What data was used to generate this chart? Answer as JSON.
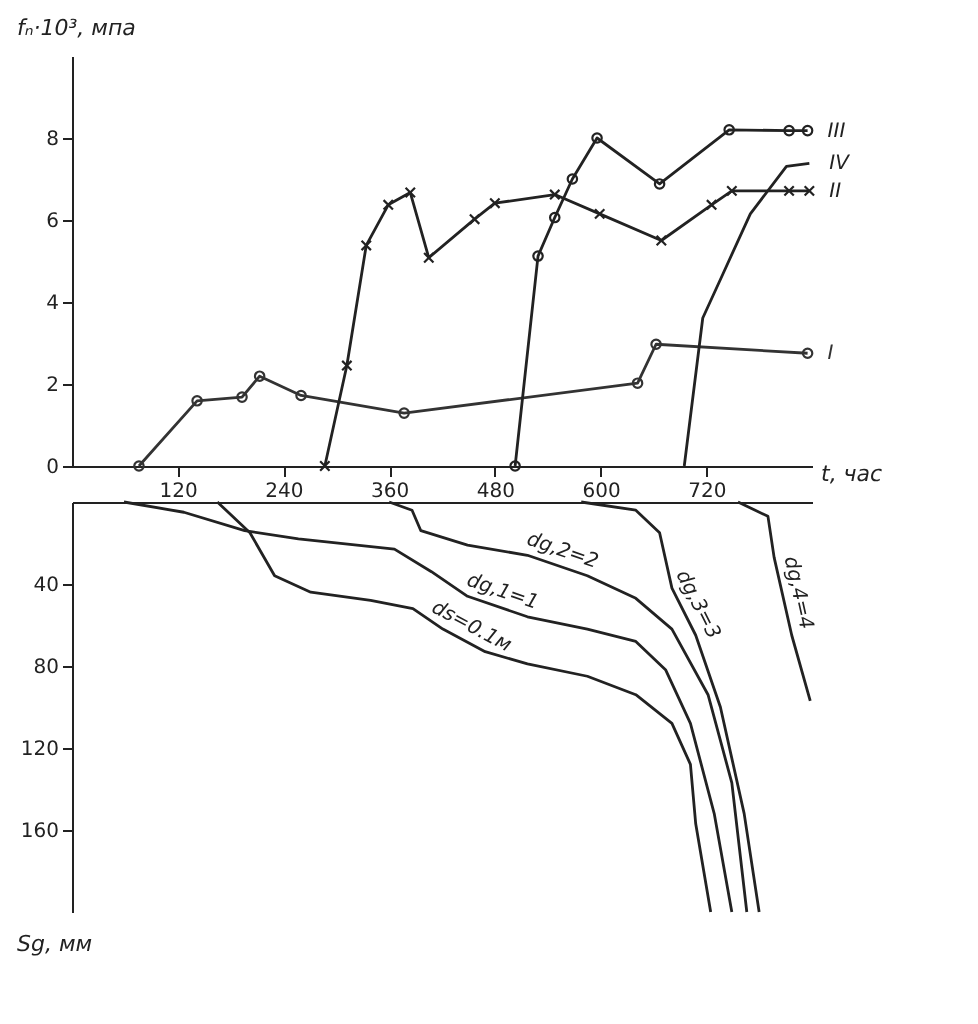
{
  "chart_data": [
    {
      "type": "line",
      "ylabel": "fₙ·10³, мпа",
      "xlabel": "t, час",
      "xlim": [
        0,
        840
      ],
      "xticks": [
        120,
        240,
        360,
        480,
        600,
        720
      ],
      "ylim": [
        0,
        10
      ],
      "yticks": [
        0,
        2,
        4,
        6,
        8
      ],
      "legend": false,
      "series": [
        {
          "name": "I",
          "color": "#333333",
          "marker": "circle",
          "x": [
            76,
            142,
            193,
            213,
            260,
            377,
            642,
            663,
            835
          ],
          "values": [
            0,
            1.59,
            1.68,
            2.19,
            1.72,
            1.29,
            2.02,
            2.97,
            2.75
          ]
        },
        {
          "name": "II",
          "color": "#222222",
          "marker": "cross",
          "x": [
            287,
            312,
            334,
            359,
            384,
            405,
            457,
            480,
            548,
            599,
            669,
            726,
            749,
            814,
            837
          ],
          "values": [
            0,
            2.45,
            5.38,
            6.37,
            6.67,
            5.08,
            6.02,
            6.41,
            6.62,
            6.15,
            5.5,
            6.37,
            6.71,
            6.71,
            6.71
          ]
        },
        {
          "name": "III",
          "color": "#222222",
          "marker": "circle",
          "x": [
            503,
            529,
            548,
            568,
            596,
            667,
            746,
            814,
            835
          ],
          "values": [
            0,
            5.12,
            6.06,
            7.0,
            8.0,
            6.88,
            8.2,
            8.18,
            8.18
          ]
        },
        {
          "name": "IV",
          "color": "#222222",
          "marker": "none",
          "x": [
            695,
            716,
            739,
            770,
            811,
            837
          ],
          "values": [
            0,
            3.61,
            4.69,
            6.15,
            7.31,
            7.38
          ]
        }
      ]
    },
    {
      "type": "line",
      "ylabel": "Sg, мм",
      "xlim": [
        0,
        840
      ],
      "ylim": [
        200,
        0
      ],
      "yticks": [
        40,
        80,
        120,
        160
      ],
      "tick_labels": "y",
      "legend": false,
      "series": [
        {
          "name": "ds=0.1м",
          "color": "#222222",
          "x": [
            165,
            202,
            230,
            271,
            339,
            387,
            421,
            469,
            517,
            585,
            640,
            681,
            702,
            708,
            725
          ],
          "values": [
            0,
            15,
            36,
            44,
            48,
            52,
            62,
            73,
            79,
            85,
            94,
            108,
            128,
            157,
            200
          ]
        },
        {
          "name": "dg,1=1",
          "color": "#222222",
          "x": [
            59,
            127,
            196,
            257,
            366,
            408,
            449,
            517,
            585,
            640,
            674,
            702,
            729,
            749
          ],
          "values": [
            0,
            5,
            14,
            18,
            23,
            34,
            46,
            56,
            62,
            68,
            82,
            108,
            152,
            200
          ]
        },
        {
          "name": "dg,2=2",
          "color": "#222222",
          "x": [
            360,
            386,
            396,
            449,
            517,
            585,
            640,
            681,
            722,
            749,
            766
          ],
          "values": [
            0,
            4,
            14,
            21,
            26,
            36,
            47,
            62,
            94,
            137,
            200
          ]
        },
        {
          "name": "dg,3=3",
          "color": "#222222",
          "x": [
            578,
            640,
            667,
            681,
            708,
            736,
            763,
            780
          ],
          "values": [
            0,
            4,
            15,
            42,
            65,
            100,
            152,
            200
          ]
        },
        {
          "name": "dg,4=4",
          "color": "#222222",
          "x": [
            756,
            790,
            797,
            817,
            838
          ],
          "values": [
            0,
            7,
            27,
            65,
            97
          ]
        }
      ]
    }
  ]
}
